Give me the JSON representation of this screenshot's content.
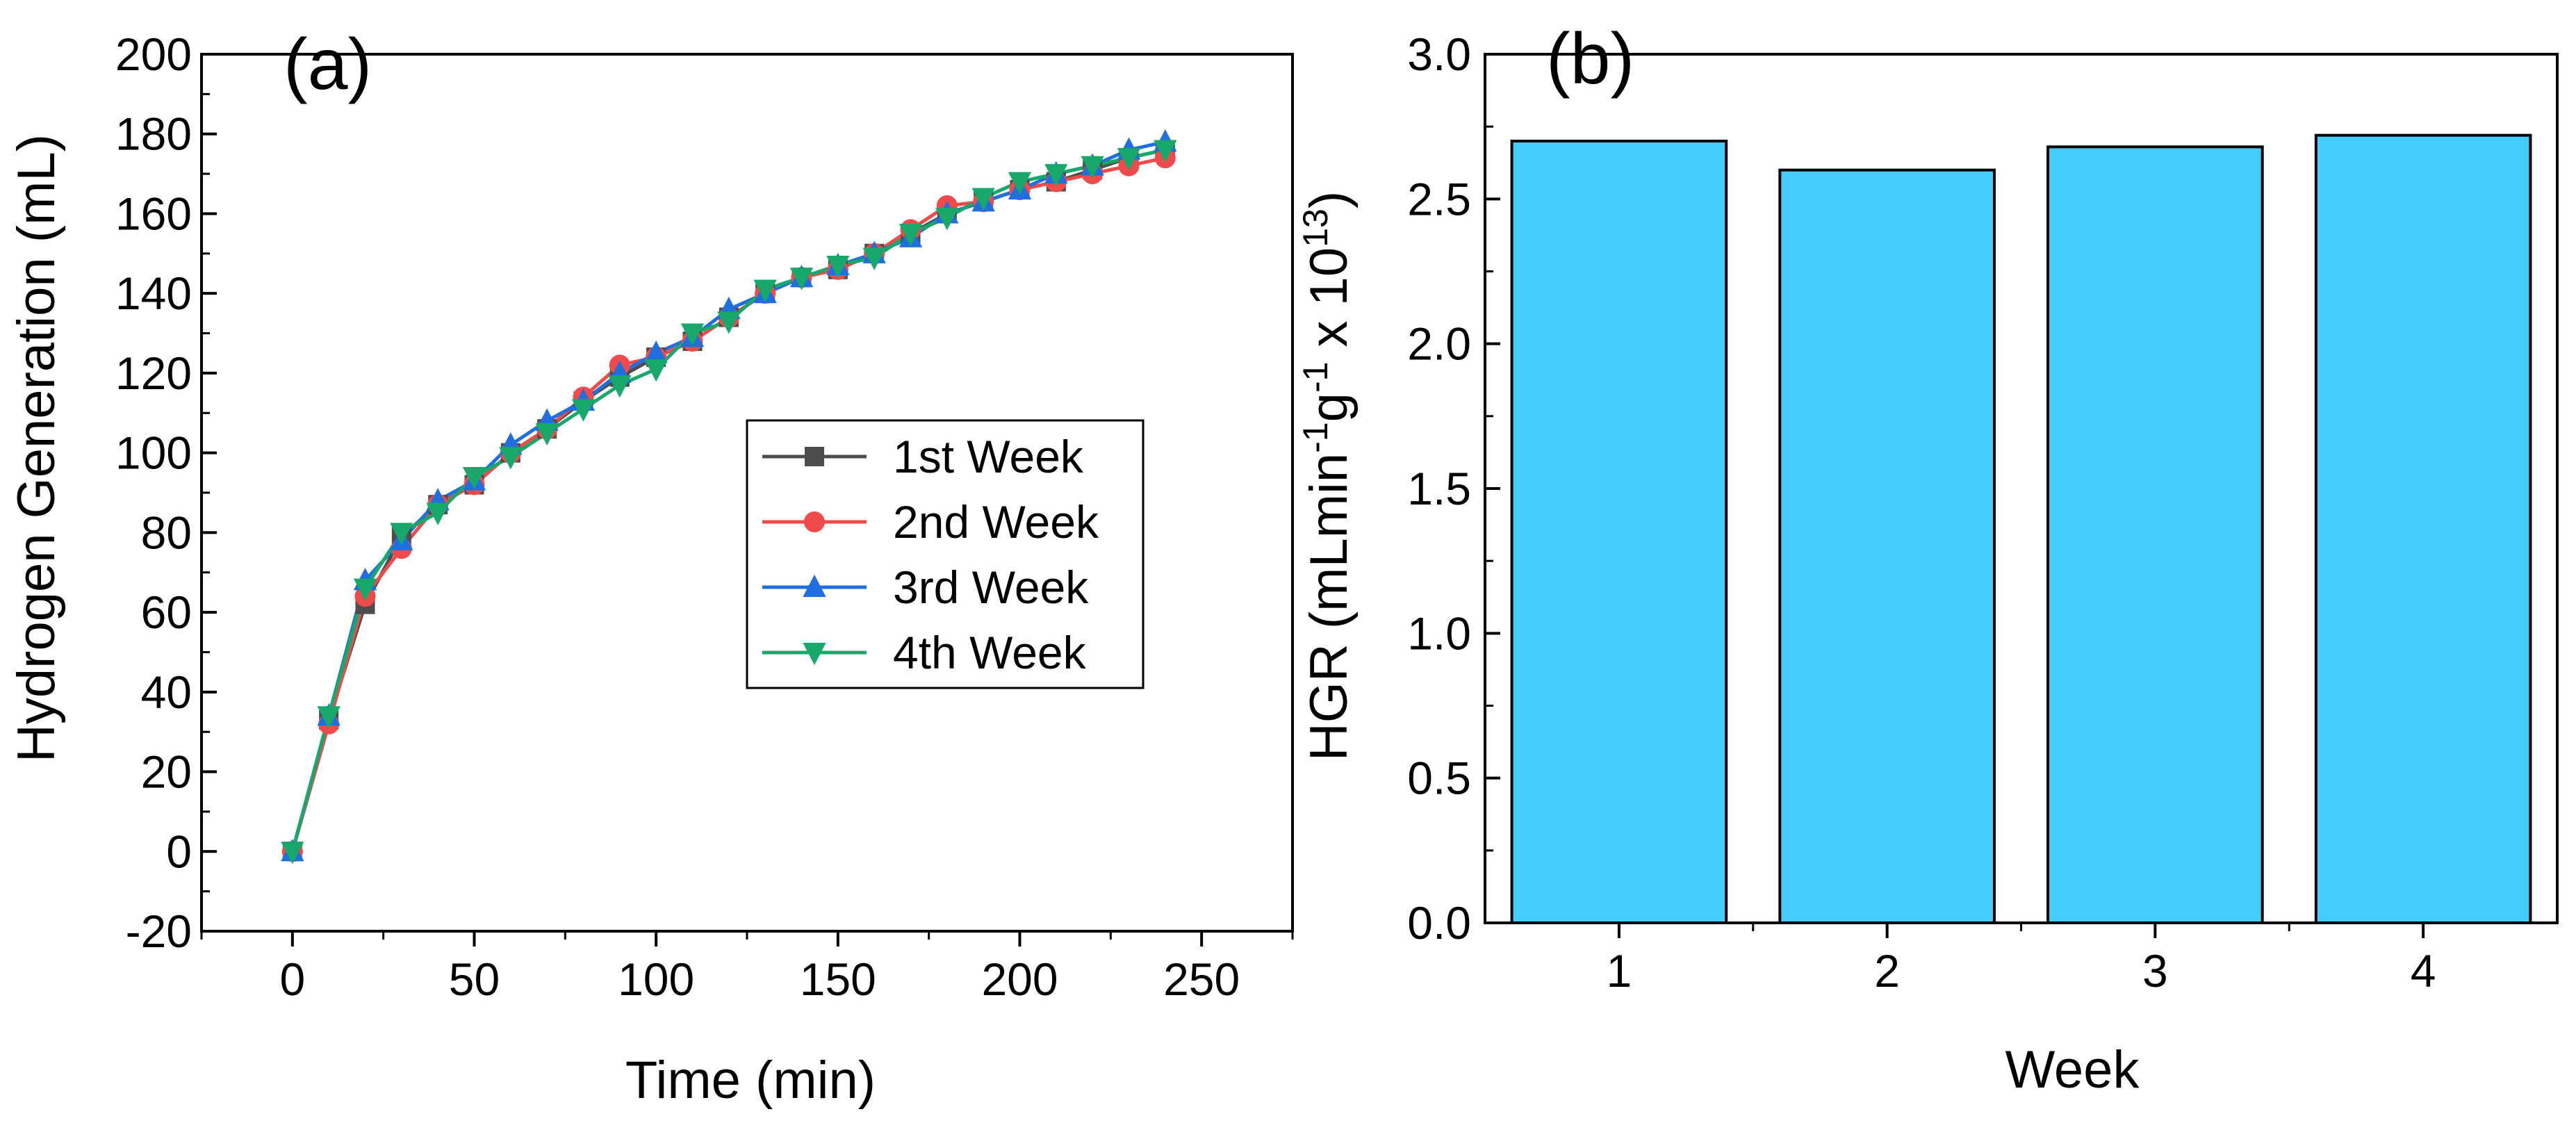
{
  "chart_data": [
    {
      "type": "line",
      "panel_label": "(a)",
      "xlabel": "Time (min)",
      "ylabel": "Hydrogen Generation (mL)",
      "xlim": [
        -25,
        275
      ],
      "ylim": [
        -20,
        200
      ],
      "xticks": [
        0,
        50,
        100,
        150,
        200,
        250
      ],
      "yticks": [
        -20,
        0,
        20,
        40,
        60,
        80,
        100,
        120,
        140,
        160,
        180,
        200
      ],
      "legend_position": "center-right",
      "x": [
        0,
        10,
        20,
        30,
        40,
        50,
        60,
        70,
        80,
        90,
        100,
        110,
        120,
        130,
        140,
        150,
        160,
        170,
        180,
        190,
        200,
        210,
        220,
        230,
        240
      ],
      "series": [
        {
          "name": "1st Week",
          "color": "#4d4d4d",
          "marker": "square",
          "values": [
            0,
            33,
            62,
            79,
            87,
            92,
            100,
            106,
            113,
            119,
            124,
            128,
            134,
            140,
            144,
            146,
            150,
            155,
            160,
            163,
            166,
            168,
            171,
            174,
            176
          ]
        },
        {
          "name": "2nd Week",
          "color": "#f04a4a",
          "marker": "circle",
          "values": [
            0,
            32,
            64,
            76,
            87,
            92,
            100,
            106,
            114,
            122,
            124,
            128,
            134,
            140,
            144,
            146,
            150,
            156,
            162,
            163,
            166,
            168,
            170,
            172,
            174
          ]
        },
        {
          "name": "3rd Week",
          "color": "#1f6fe0",
          "marker": "triangle-up",
          "values": [
            0,
            34,
            68,
            78,
            88,
            93,
            102,
            108,
            113,
            120,
            125,
            129,
            136,
            140,
            144,
            147,
            150,
            154,
            160,
            163,
            166,
            170,
            172,
            176,
            178
          ]
        },
        {
          "name": "4th Week",
          "color": "#17a86a",
          "marker": "triangle-down",
          "values": [
            0,
            34,
            66,
            80,
            85,
            94,
            99,
            105,
            111,
            117,
            121,
            130,
            133,
            141,
            144,
            147,
            149,
            155,
            159,
            164,
            168,
            170,
            172,
            174,
            176
          ]
        }
      ]
    },
    {
      "type": "bar",
      "panel_label": "(b)",
      "xlabel": "Week",
      "ylabel_parts": [
        "HGR (mLmin",
        "-1",
        "g",
        "-1",
        " x 10",
        "13",
        ")"
      ],
      "ylim": [
        0,
        3.0
      ],
      "yticks": [
        "0.0",
        "0.5",
        "1.0",
        "1.5",
        "2.0",
        "2.5",
        "3.0"
      ],
      "categories": [
        "1",
        "2",
        "3",
        "4"
      ],
      "values": [
        2.7,
        2.6,
        2.68,
        2.72
      ],
      "bar_color": "#44cdfc"
    }
  ]
}
